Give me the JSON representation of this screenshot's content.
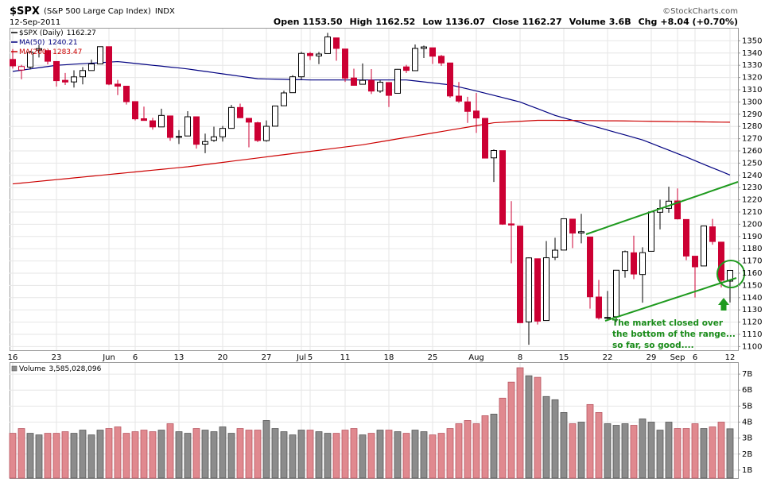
{
  "chart_data": {
    "type": "candlestick",
    "title": "$SPX",
    "subtitle": "(S&P 500 Large Cap Index)",
    "exchange": "INDX",
    "date": "12-Sep-2011",
    "source": "©StockCharts.com",
    "quote": [
      {
        "label": "Open",
        "value": "1153.50"
      },
      {
        "label": "High",
        "value": "1162.52"
      },
      {
        "label": "Low",
        "value": "1136.07"
      },
      {
        "label": "Close",
        "value": "1162.27"
      },
      {
        "label": "Volume",
        "value": "3.6B"
      },
      {
        "label": "Chg",
        "value": "+8.04 (+0.70%)"
      }
    ],
    "price_name": "$SPX (Daily)",
    "up_color": "#000000",
    "down_color": "#cc0033",
    "categories": [
      "16",
      null,
      null,
      null,
      null,
      "23",
      null,
      null,
      null,
      null,
      null,
      "Jun",
      null,
      null,
      "6",
      null,
      null,
      null,
      null,
      "13",
      null,
      null,
      null,
      null,
      "20",
      null,
      null,
      null,
      null,
      "27",
      null,
      null,
      null,
      "Jul",
      "5",
      null,
      null,
      null,
      "11",
      null,
      null,
      null,
      null,
      "18",
      null,
      null,
      null,
      null,
      "25",
      null,
      null,
      null,
      null,
      "Aug",
      null,
      null,
      null,
      null,
      "8",
      null,
      null,
      null,
      null,
      "15",
      null,
      null,
      null,
      null,
      "22",
      null,
      null,
      null,
      null,
      "29",
      null,
      null,
      "Sep",
      null,
      "6",
      null,
      null,
      null,
      "12"
    ],
    "open": [
      1334.8,
      1326.1,
      1328.5,
      1342.4,
      1342.0,
      1333.1,
      1317.7,
      1316.4,
      1320.6,
      1325.7,
      1331.1,
      1345.2,
      1314.6,
      1312.9,
      1300.3,
      1286.3,
      1284.6,
      1279.6,
      1288.6,
      1271.3,
      1272.2,
      1287.9,
      1265.5,
      1268.6,
      1271.5,
      1278.4,
      1295.5,
      1286.6,
      1283.0,
      1268.4,
      1280.2,
      1296.9,
      1307.6,
      1320.6,
      1339.6,
      1337.6,
      1339.6,
      1352.4,
      1343.3,
      1319.6,
      1314.5,
      1317.7,
      1308.9,
      1315.9,
      1307.1,
      1328.7,
      1325.6,
      1343.8,
      1344.3,
      1337.4,
      1331.9,
      1304.8,
      1300.1,
      1292.6,
      1286.6,
      1254.3,
      1260.2,
      1200.3,
      1198.5,
      1120.2,
      1171.8,
      1121.3,
      1172.9,
      1178.9,
      1204.2,
      1192.9,
      1189.6,
      1140.5,
      1123.6,
      1124.4,
      1162.2,
      1176.7,
      1158.9,
      1177.9,
      1209.8,
      1213.0,
      1219.1,
      1203.9,
      1173.9,
      1165.9,
      1197.9,
      1185.4,
      1153.5
    ],
    "high": [
      1343.3,
      1330.4,
      1341.8,
      1346.8,
      1342.0,
      1333.1,
      1323.7,
      1325.9,
      1328.5,
      1334.6,
      1345.2,
      1345.2,
      1318.0,
      1312.9,
      1300.3,
      1296.2,
      1287.0,
      1294.5,
      1288.6,
      1277.0,
      1292.5,
      1287.9,
      1274.1,
      1279.8,
      1280.4,
      1297.6,
      1298.6,
      1286.8,
      1283.9,
      1284.9,
      1296.8,
      1309.2,
      1321.9,
      1341.0,
      1340.9,
      1340.9,
      1356.5,
      1352.4,
      1343.3,
      1327.2,
      1331.5,
      1326.9,
      1317.7,
      1315.9,
      1327.0,
      1330.4,
      1347.0,
      1346.1,
      1344.3,
      1338.5,
      1331.9,
      1316.3,
      1304.2,
      1307.4,
      1286.6,
      1261.2,
      1260.2,
      1218.9,
      1198.5,
      1172.9,
      1171.8,
      1186.3,
      1189.0,
      1204.5,
      1204.2,
      1208.5,
      1189.6,
      1154.5,
      1145.5,
      1162.4,
      1178.5,
      1190.7,
      1181.2,
      1210.3,
      1220.1,
      1230.7,
      1229.3,
      1203.9,
      1173.9,
      1198.6,
      1204.4,
      1185.4,
      1162.52
    ],
    "low": [
      1327.3,
      1318.5,
      1326.6,
      1336.4,
      1330.7,
      1312.6,
      1313.9,
      1311.8,
      1314.4,
      1325.7,
      1331.1,
      1313.7,
      1305.6,
      1297.9,
      1284.9,
      1284.7,
      1277.4,
      1279.6,
      1268.3,
      1265.6,
      1272.2,
      1261.9,
      1258.1,
      1267.4,
      1267.6,
      1278.4,
      1286.8,
      1262.9,
      1267.2,
      1267.5,
      1280.2,
      1296.9,
      1307.6,
      1318.2,
      1334.3,
      1330.9,
      1339.6,
      1333.7,
      1316.4,
      1313.3,
      1314.5,
      1306.5,
      1307.5,
      1295.9,
      1307.1,
      1323.7,
      1325.6,
      1336.0,
      1331.1,
      1329.6,
      1303.5,
      1299.2,
      1282.9,
      1274.7,
      1254.0,
      1234.6,
      1199.5,
      1168.1,
      1119.3,
      1101.5,
      1118.0,
      1121.3,
      1170.7,
      1178.9,
      1180.5,
      1184.4,
      1131.0,
      1122.1,
      1121.1,
      1120.1,
      1156.3,
      1155.1,
      1135.9,
      1177.9,
      1195.8,
      1209.4,
      1203.9,
      1170.6,
      1140.1,
      1165.9,
      1183.3,
      1148.4,
      1136.07
    ],
    "close": [
      1329.5,
      1329.0,
      1340.7,
      1343.6,
      1333.3,
      1317.4,
      1316.3,
      1320.5,
      1325.7,
      1331.1,
      1345.2,
      1314.6,
      1312.9,
      1300.2,
      1286.2,
      1284.9,
      1279.6,
      1289.0,
      1271.0,
      1271.8,
      1287.9,
      1265.4,
      1267.6,
      1271.5,
      1278.4,
      1295.5,
      1287.1,
      1283.5,
      1268.5,
      1280.1,
      1296.7,
      1307.4,
      1320.6,
      1339.7,
      1337.9,
      1339.2,
      1353.2,
      1343.8,
      1319.5,
      1313.6,
      1317.7,
      1308.9,
      1316.1,
      1305.4,
      1326.7,
      1325.8,
      1343.8,
      1345.0,
      1337.4,
      1331.9,
      1304.9,
      1300.7,
      1292.3,
      1286.9,
      1254.1,
      1260.3,
      1200.1,
      1199.4,
      1119.5,
      1172.5,
      1120.8,
      1172.6,
      1178.8,
      1204.5,
      1192.8,
      1193.9,
      1140.7,
      1123.5,
      1123.8,
      1162.4,
      1177.6,
      1159.3,
      1176.8,
      1210.1,
      1212.9,
      1218.9,
      1204.4,
      1174.0,
      1165.2,
      1198.6,
      1185.9,
      1154.2,
      1162.27
    ],
    "ma": [
      {
        "name": "MA(50)",
        "color": "#000080",
        "values": [
          1325,
          1326,
          1327,
          1328,
          1329,
          1330,
          1330.4,
          1330.9,
          1331.3,
          1331.7,
          1332.1,
          1332.6,
          1333,
          1332.3,
          1331.5,
          1330.8,
          1330,
          1329.3,
          1328.5,
          1327.8,
          1327,
          1326,
          1325,
          1324,
          1323,
          1322,
          1321,
          1320,
          1319,
          1318.8,
          1318.7,
          1318.5,
          1318.3,
          1318.2,
          1318,
          1318,
          1318,
          1318,
          1318,
          1318,
          1318,
          1318,
          1318,
          1318,
          1318,
          1318,
          1317.2,
          1316.4,
          1315.6,
          1314.8,
          1314,
          1312.3,
          1310.7,
          1309,
          1307.2,
          1305.4,
          1303.6,
          1301.8,
          1300,
          1297.2,
          1294.5,
          1291.8,
          1289,
          1287,
          1285,
          1283,
          1281,
          1279,
          1277,
          1275,
          1273,
          1271,
          1269,
          1266.2,
          1263.4,
          1260.6,
          1257.8,
          1255,
          1252,
          1249,
          1246.1,
          1243.2,
          1240.21
        ]
      },
      {
        "name": "MA(200)",
        "color": "#cc0000",
        "values": [
          1233,
          1233.7,
          1234.4,
          1235.1,
          1235.8,
          1236.5,
          1237.2,
          1237.9,
          1238.6,
          1239.3,
          1240,
          1240.7,
          1241.4,
          1242.1,
          1242.8,
          1243.5,
          1244.2,
          1244.9,
          1245.6,
          1246.3,
          1247,
          1247.9,
          1248.8,
          1249.7,
          1250.6,
          1251.5,
          1252.4,
          1253.3,
          1254.2,
          1255.1,
          1256,
          1256.9,
          1257.8,
          1258.7,
          1259.6,
          1260.5,
          1261.4,
          1262.3,
          1263.2,
          1264.1,
          1265,
          1266.2,
          1267.4,
          1268.6,
          1269.8,
          1271,
          1272.2,
          1273.4,
          1274.6,
          1275.8,
          1277,
          1278.2,
          1279.4,
          1280.6,
          1281.8,
          1283,
          1283.4,
          1283.8,
          1284.2,
          1284.6,
          1285,
          1285,
          1285,
          1284.9,
          1284.9,
          1284.8,
          1284.8,
          1284.7,
          1284.6,
          1284.6,
          1284.5,
          1284.4,
          1284.3,
          1284.2,
          1284.1,
          1284,
          1283.9,
          1283.9,
          1283.8,
          1283.7,
          1283.6,
          1283.5,
          1283.47
        ]
      }
    ],
    "ylim": [
      1097,
      1360
    ],
    "yticks": [
      1100,
      1110,
      1120,
      1130,
      1140,
      1150,
      1160,
      1170,
      1180,
      1190,
      1200,
      1210,
      1220,
      1230,
      1240,
      1250,
      1260,
      1270,
      1280,
      1290,
      1300,
      1310,
      1320,
      1330,
      1340,
      1350
    ],
    "grid": true,
    "volume": {
      "name": "Volume",
      "label": "3,585,028,096",
      "up_color": "#8c8c8c",
      "down_color": "#e0898f",
      "values": [
        3.3,
        3.6,
        3.3,
        3.2,
        3.3,
        3.3,
        3.4,
        3.3,
        3.5,
        3.2,
        3.5,
        3.6,
        3.7,
        3.3,
        3.4,
        3.5,
        3.4,
        3.5,
        3.9,
        3.4,
        3.3,
        3.6,
        3.5,
        3.4,
        3.7,
        3.3,
        3.6,
        3.5,
        3.5,
        4.1,
        3.6,
        3.4,
        3.2,
        3.5,
        3.5,
        3.4,
        3.3,
        3.3,
        3.5,
        3.6,
        3.2,
        3.3,
        3.5,
        3.5,
        3.4,
        3.3,
        3.5,
        3.4,
        3.2,
        3.3,
        3.6,
        3.9,
        4.1,
        3.9,
        4.4,
        4.5,
        5.5,
        6.5,
        7.4,
        6.9,
        6.8,
        5.6,
        5.4,
        4.6,
        3.9,
        4.0,
        5.1,
        4.6,
        3.9,
        3.8,
        3.9,
        3.8,
        4.2,
        4.0,
        3.5,
        4.0,
        3.6,
        3.6,
        3.9,
        3.6,
        3.7,
        4.0,
        3.585028096
      ],
      "ylim": [
        0.5,
        7.7
      ],
      "yticks": [
        {
          "value": 1,
          "label": "1B"
        },
        {
          "value": 2,
          "label": "2B"
        },
        {
          "value": 3,
          "label": "3B"
        },
        {
          "value": 4,
          "label": "4B"
        },
        {
          "value": 5,
          "label": "5B"
        },
        {
          "value": 6,
          "label": "6B"
        },
        {
          "value": 7,
          "label": "7B"
        }
      ]
    },
    "annotation": [
      "The market closed over",
      "the bottom of the range...",
      "so far, so good...."
    ],
    "annotation_color": "#1a8c1a"
  }
}
